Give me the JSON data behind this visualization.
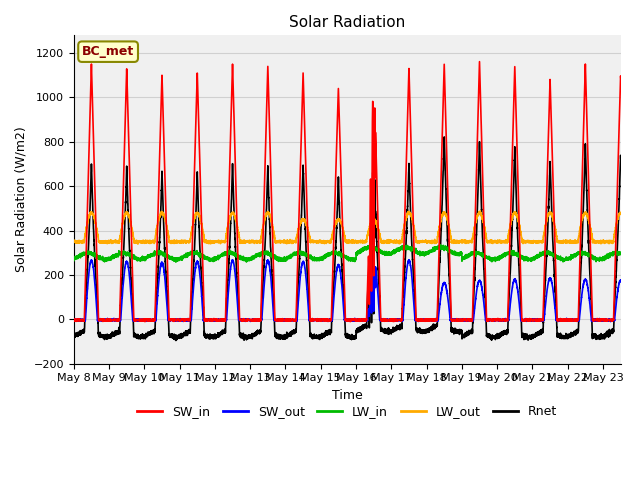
{
  "title": "Solar Radiation",
  "ylabel": "Solar Radiation (W/m2)",
  "xlabel": "Time",
  "ylim": [
    -200,
    1280
  ],
  "yticks": [
    -200,
    0,
    200,
    400,
    600,
    800,
    1000,
    1200
  ],
  "x_tick_labels": [
    "May 8",
    "May 9",
    "May 10",
    "May 11",
    "May 12",
    "May 13",
    "May 14",
    "May 15",
    "May 16",
    "May 17",
    "May 18",
    "May 19",
    "May 20",
    "May 21",
    "May 22",
    "May 23"
  ],
  "legend_labels": [
    "SW_in",
    "SW_out",
    "LW_in",
    "LW_out",
    "Rnet"
  ],
  "legend_colors": [
    "#ff0000",
    "#0000ff",
    "#00bb00",
    "#ffaa00",
    "#000000"
  ],
  "station_label": "BC_met",
  "station_label_color": "#8B0000",
  "station_box_facecolor": "#ffffcc",
  "station_box_edgecolor": "#888800",
  "grid_color": "#d0d0d0",
  "axes_bg": "#f0f0f0",
  "fig_bg": "#ffffff"
}
